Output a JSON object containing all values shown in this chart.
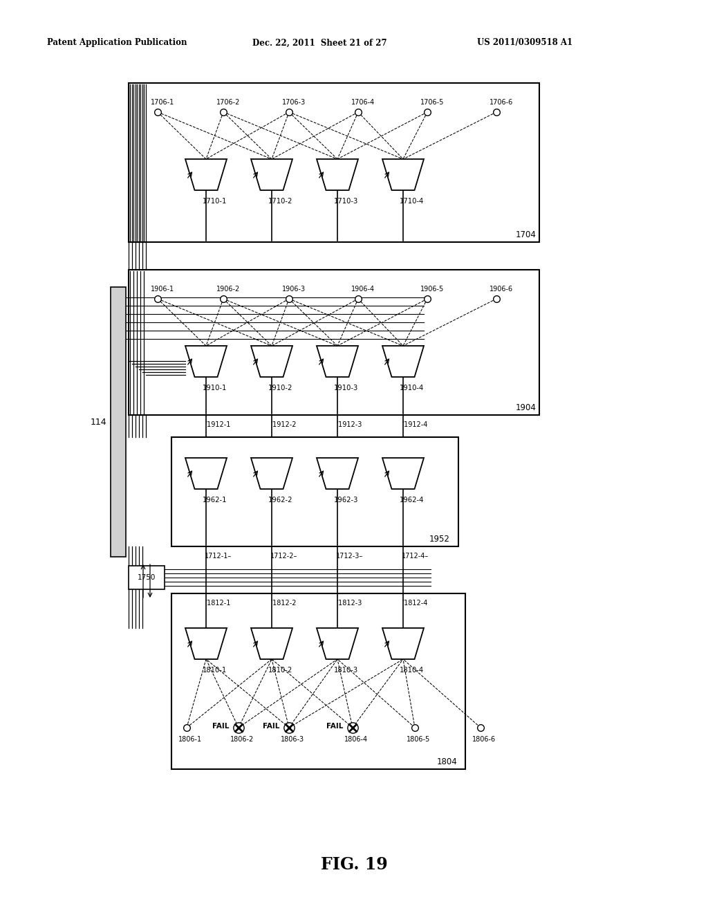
{
  "bg_color": "#ffffff",
  "header_left": "Patent Application Publication",
  "header_mid": "Dec. 22, 2011  Sheet 21 of 27",
  "header_right": "US 2011/0309518 A1",
  "fig_label": "FIG. 19",
  "box1_label": "1704",
  "box2_label": "1904",
  "box3_label": "1952",
  "box4_label": "1804",
  "bus_label": "114",
  "reg_label": "1750",
  "top_nodes": [
    "1706-1",
    "1706-2",
    "1706-3",
    "1706-4",
    "1706-5",
    "1706-6"
  ],
  "top_mux_labels": [
    "1710-1",
    "1710-2",
    "1710-3",
    "1710-4"
  ],
  "mid_nodes": [
    "1906-1",
    "1906-2",
    "1906-3",
    "1906-4",
    "1906-5",
    "1906-6"
  ],
  "mid_mux_labels": [
    "1910-1",
    "1910-2",
    "1910-3",
    "1910-4"
  ],
  "mid_tsv_labels": [
    "’1912-1",
    "’1912-2",
    "’1912-3",
    "’1912-4"
  ],
  "mid2_mux_labels": [
    "1962-1",
    "1962-2",
    "1962-3",
    "1962-4"
  ],
  "mid2_tsv_labels": [
    "1712-1–",
    "1712-2",
    "1712-3",
    "1712-4"
  ],
  "bot_tsv_labels": [
    "’1812-1",
    "’1812-2",
    "’1812-3",
    "’1812-4"
  ],
  "bot_mux_labels": [
    "1810-1",
    "1810-2",
    "1810-3",
    "1810-4"
  ],
  "bot_nodes": [
    "1806-1",
    "1806-2",
    "1806-3",
    "1806-4",
    "1806-5",
    "1806-6"
  ],
  "fail_indices": [
    1,
    2,
    3
  ]
}
